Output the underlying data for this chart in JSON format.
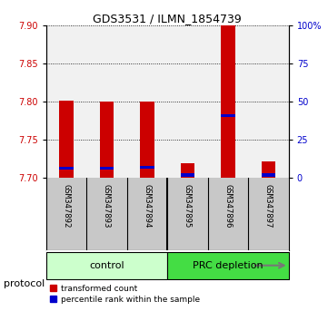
{
  "title": "GDS3531 / ILMN_1854739",
  "samples": [
    "GSM347892",
    "GSM347893",
    "GSM347894",
    "GSM347895",
    "GSM347896",
    "GSM347897"
  ],
  "transformed_counts": [
    7.802,
    7.8,
    7.8,
    7.72,
    7.9,
    7.722
  ],
  "percentile_ranks": [
    7.713,
    7.713,
    7.714,
    7.704,
    7.782,
    7.704
  ],
  "ylim": [
    7.7,
    7.9
  ],
  "yticks": [
    7.7,
    7.75,
    7.8,
    7.85,
    7.9
  ],
  "right_yticks": [
    0,
    25,
    50,
    75,
    100
  ],
  "right_ytick_labels": [
    "0",
    "25",
    "50",
    "75",
    "100%"
  ],
  "bar_color_red": "#cc0000",
  "bar_color_blue": "#0000cc",
  "bar_width": 0.35,
  "background_color": "#ffffff",
  "left_tick_color": "#cc0000",
  "right_tick_color": "#0000cc",
  "sample_bg_color": "#c8c8c8",
  "control_bg_color": "#ccffcc",
  "prc_bg_color": "#44dd44",
  "title_fontsize": 9,
  "tick_fontsize": 7,
  "label_fontsize": 6.5,
  "legend_fontsize": 6.5,
  "proto_fontsize": 8,
  "group_fontsize": 8
}
